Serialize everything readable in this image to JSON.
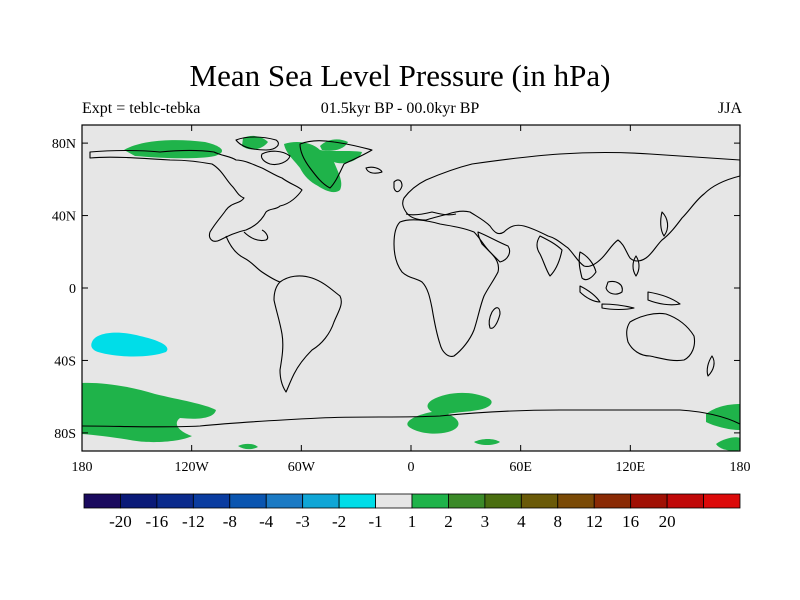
{
  "title": "Mean Sea Level Pressure (in hPa)",
  "subtitle_left": "Expt = teblc-tebka",
  "subtitle_center": "01.5kyr BP - 00.0kyr BP",
  "subtitle_right": "JJA",
  "map": {
    "lon_range": [
      -180,
      180
    ],
    "lat_range": [
      -90,
      90
    ],
    "background_color": "#e6e6e6",
    "x_ticks": [
      {
        "value": -180,
        "label": "180"
      },
      {
        "value": -120,
        "label": "120W"
      },
      {
        "value": -60,
        "label": "60W"
      },
      {
        "value": 0,
        "label": "0"
      },
      {
        "value": 60,
        "label": "60E"
      },
      {
        "value": 120,
        "label": "120E"
      },
      {
        "value": 180,
        "label": "180"
      }
    ],
    "y_ticks": [
      {
        "value": 80,
        "label": "80N"
      },
      {
        "value": 40,
        "label": "40N"
      },
      {
        "value": 0,
        "label": "0"
      },
      {
        "value": -40,
        "label": "40S"
      },
      {
        "value": -80,
        "label": "80S"
      }
    ],
    "anomaly_regions": [
      {
        "name": "north-atlantic-greenland",
        "level": "1 to 2",
        "color": "#1fb34a"
      },
      {
        "name": "arctic-north-america",
        "level": "1 to 2",
        "color": "#1fb34a"
      },
      {
        "name": "south-pacific-midlat",
        "level": "-2 to -1",
        "color": "#00dde8"
      },
      {
        "name": "southern-ocean-pacific",
        "level": "1 to 2",
        "color": "#1fb34a"
      },
      {
        "name": "southern-ocean-atlantic",
        "level": "1 to 2",
        "color": "#1fb34a"
      },
      {
        "name": "southern-ocean-west-pacific",
        "level": "1 to 2",
        "color": "#1fb34a"
      }
    ]
  },
  "colorbar": {
    "colors": [
      "#1a0a5e",
      "#0a1a78",
      "#0a2a8c",
      "#0a3ca0",
      "#0a55b0",
      "#1b7ac4",
      "#10a6d6",
      "#00dde8",
      "#e6e6e6",
      "#1fb34a",
      "#3b8a28",
      "#4a6e10",
      "#6a5a08",
      "#7a4a06",
      "#8a2a04",
      "#a01004",
      "#c00808",
      "#dc0a0a"
    ],
    "labels": [
      "-20",
      "-16",
      "-12",
      "-8",
      "-4",
      "-3",
      "-2",
      "-1",
      "1",
      "2",
      "3",
      "4",
      "8",
      "12",
      "16",
      "20"
    ]
  }
}
